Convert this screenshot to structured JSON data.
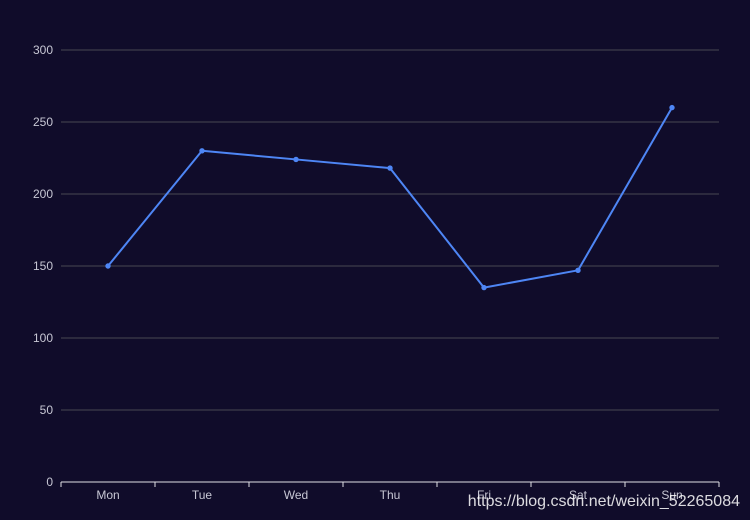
{
  "chart_data": {
    "type": "line",
    "categories": [
      "Mon",
      "Tue",
      "Wed",
      "Thu",
      "Fri",
      "Sat",
      "Sun"
    ],
    "series": [
      {
        "values": [
          150,
          230,
          224,
          218,
          135,
          147,
          260
        ]
      }
    ],
    "ylim": [
      0,
      300
    ],
    "yticks": [
      0,
      50,
      100,
      150,
      200,
      250,
      300
    ],
    "grid": true,
    "title": "",
    "xlabel": "",
    "ylabel": ""
  },
  "colors": {
    "background": "#100c2a",
    "line": "#4e86f5",
    "grid": "#484753",
    "axis": "#e0e0e6",
    "tick_text": "#c7c7d4"
  },
  "watermark": "https://blog.csdn.net/weixin_52265084"
}
